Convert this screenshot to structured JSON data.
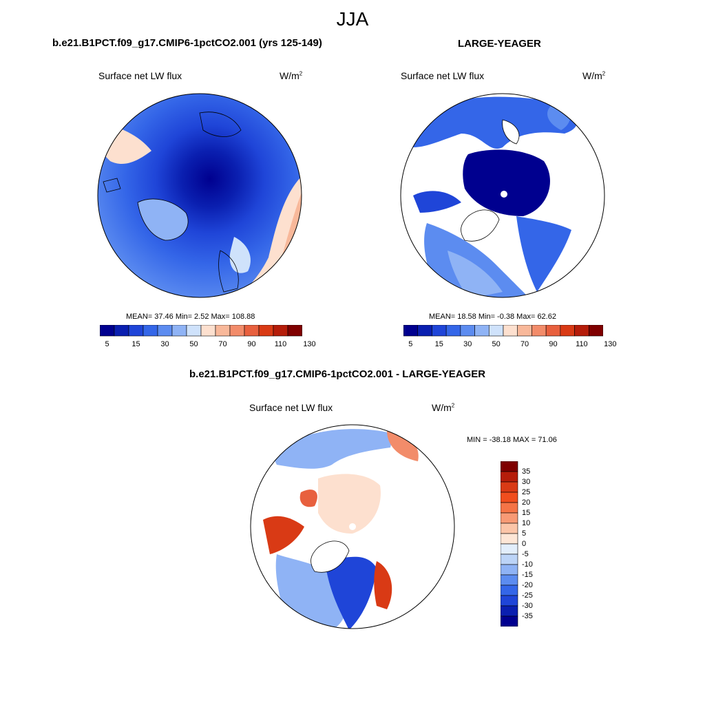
{
  "main_title": "JJA",
  "panels": [
    {
      "title": "b.e21.B1PCT.f09_g17.CMIP6-1pctCO2.001 (yrs 125-149)",
      "variable": "Surface net LW flux",
      "units": "W/m",
      "units_sup": "2",
      "stats": "MEAN=  37.46  Min=   2.52  Max= 108.88"
    },
    {
      "title": "LARGE-YEAGER",
      "variable": "Surface net LW flux",
      "units": "W/m",
      "units_sup": "2",
      "stats": "MEAN=  18.58  Min=  -0.38  Max=  62.62"
    },
    {
      "title": "b.e21.B1PCT.f09_g17.CMIP6-1pctCO2.001 - LARGE-YEAGER",
      "variable": "Surface net LW flux",
      "units": "W/m",
      "units_sup": "2",
      "stats": "MIN = -38.18 MAX =  71.06"
    }
  ],
  "abs_colorbar": {
    "labels": [
      "5",
      "15",
      "30",
      "50",
      "70",
      "90",
      "110",
      "130"
    ],
    "colors": [
      "#00008f",
      "#0a1fb0",
      "#1f45d8",
      "#3466e8",
      "#5c8cf0",
      "#8fb3f5",
      "#cfe2fb",
      "#fde0cf",
      "#f8b89a",
      "#f28c6a",
      "#e8603e",
      "#d93a15",
      "#b51d0a",
      "#7f0000"
    ]
  },
  "diff_colorbar": {
    "labels": [
      "35",
      "30",
      "25",
      "20",
      "15",
      "10",
      "5",
      "0",
      "-5",
      "-10",
      "-15",
      "-20",
      "-25",
      "-30",
      "-35"
    ],
    "colors": [
      "#7f0000",
      "#b51d0a",
      "#d93a15",
      "#f04e1e",
      "#f57446",
      "#f89a75",
      "#fbc5a8",
      "#fde6d6",
      "#e2eefb",
      "#bcd4f7",
      "#8fb3f5",
      "#5c8cf0",
      "#3466e8",
      "#1f45d8",
      "#0a1fb0",
      "#00008f"
    ]
  }
}
